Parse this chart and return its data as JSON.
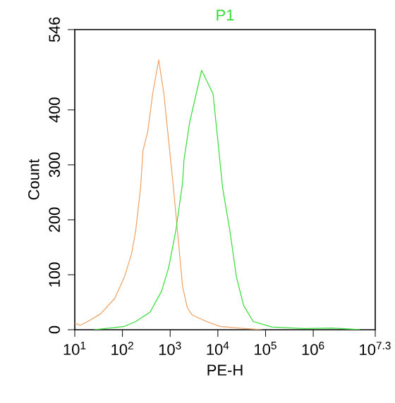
{
  "chart_data": {
    "type": "line",
    "xlabel": "PE-H",
    "ylabel": "Count",
    "log": "x",
    "xlim": [
      10,
      19952623
    ],
    "ylim": [
      0,
      546
    ],
    "xticks": [
      {
        "value": 10,
        "label": "10$^{1}$"
      },
      {
        "value": 100,
        "label": "10$^{2}$"
      },
      {
        "value": 1000,
        "label": "10$^{3}$"
      },
      {
        "value": 10000,
        "label": "10$^{4}$"
      },
      {
        "value": 100000,
        "label": "10$^{5}$"
      },
      {
        "value": 1000000,
        "label": "10$^{6}$"
      },
      {
        "value": 19952623,
        "label": "10$^{7.3}$"
      }
    ],
    "yticks": [
      0,
      100,
      200,
      300,
      400,
      546
    ],
    "series": [
      {
        "color": "#f0a060",
        "x": [
          10,
          13,
          18,
          35,
          69,
          110,
          155,
          190,
          240,
          270,
          340,
          430,
          575,
          740,
          930,
          1170,
          1480,
          1820,
          2290,
          2880,
          5750,
          11200,
          27500,
          85000
        ],
        "values": [
          12,
          8,
          14,
          29,
          57,
          96,
          138,
          181,
          259,
          326,
          361,
          429,
          491,
          429,
          344,
          259,
          164,
          79,
          40,
          27,
          15,
          6,
          3,
          0
        ]
      },
      {
        "name": "P1",
        "color": "#33dd33",
        "x": [
          25,
          110,
          190,
          380,
          660,
          930,
          1320,
          1820,
          1950,
          2570,
          4570,
          7940,
          10000,
          12600,
          17800,
          24500,
          34700,
          55000,
          135000,
          650000,
          2500000,
          9800000
        ],
        "values": [
          0,
          6,
          15,
          32,
          70,
          113,
          181,
          267,
          309,
          378,
          472,
          429,
          344,
          258,
          181,
          96,
          44,
          15,
          5,
          2,
          3,
          0
        ]
      }
    ]
  }
}
